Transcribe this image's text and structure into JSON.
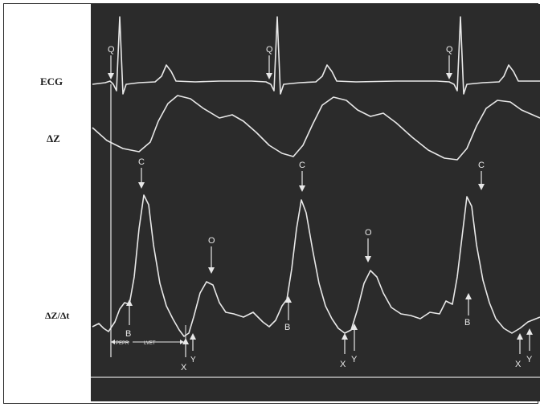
{
  "labels": {
    "ecg": "ECG",
    "dz": "ΔZ",
    "dzdt": "ΔZ/Δt"
  },
  "markers": {
    "q": "Q",
    "c": "C",
    "o": "O",
    "b": "B",
    "x": "X",
    "y": "Y"
  },
  "intervals": {
    "pep": "PEPR",
    "lvet": "LVET"
  },
  "colors": {
    "panel_bg": "#2b2b2b",
    "trace": "#e8e8e8",
    "label_text": "#1a1a1a"
  }
}
